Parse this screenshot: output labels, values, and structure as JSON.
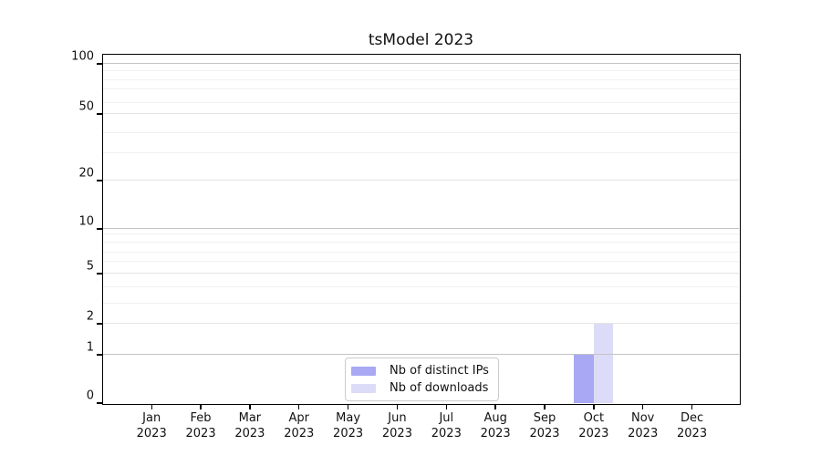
{
  "chart_data": {
    "type": "bar",
    "title": "tsModel 2023",
    "x_months": [
      "Jan",
      "Feb",
      "Mar",
      "Apr",
      "May",
      "Jun",
      "Jul",
      "Aug",
      "Sep",
      "Oct",
      "Nov",
      "Dec"
    ],
    "x_year": "2023",
    "series": [
      {
        "name": "Nb of distinct IPs",
        "color": "#a8a8f4",
        "values": [
          0,
          0,
          0,
          0,
          0,
          0,
          0,
          0,
          0,
          1,
          0,
          0
        ]
      },
      {
        "name": "Nb of downloads",
        "color": "#dcdcf8",
        "values": [
          0,
          0,
          0,
          0,
          0,
          0,
          0,
          0,
          0,
          2,
          0,
          0
        ]
      }
    ],
    "y_axis": {
      "scale": "symlog",
      "labeled_ticks": [
        0,
        1,
        2,
        5,
        10,
        20,
        50,
        100
      ],
      "tick_fractions": {
        "0": 0,
        "1": 0.1387,
        "2": 0.2277,
        "3": 0.2853,
        "4": 0.3325,
        "5": 0.3717,
        "6": 0.4058,
        "7": 0.4319,
        "8": 0.4607,
        "9": 0.4843,
        "10": 0.5,
        "20": 0.6387,
        "30": 0.7173,
        "40": 0.7749,
        "50": 0.8298,
        "60": 0.8613,
        "70": 0.9005,
        "80": 0.9267,
        "90": 0.9529,
        "100": 0.9738
      },
      "strong_grid": [
        1,
        10,
        100
      ],
      "mid_grid": [
        2,
        5,
        20,
        50
      ],
      "weak_grid": [
        3,
        4,
        6,
        7,
        8,
        9,
        30,
        40,
        60,
        70,
        80,
        90
      ]
    },
    "legend_position": "lower center",
    "grid": "both",
    "colors": {
      "spine": "#000000",
      "grid_strong": "#c4c4c4",
      "grid_mid": "#e4e4e4",
      "grid_weak": "#f1f1f1",
      "text": "#111111",
      "legend_border": "#cccccc"
    }
  }
}
